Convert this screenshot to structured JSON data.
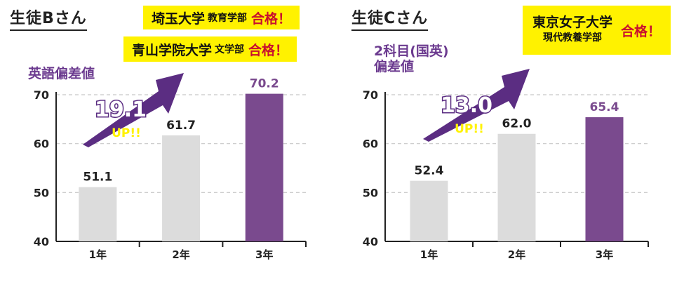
{
  "panels": [
    {
      "student": "生徒Bさん",
      "ylabel": "英語偏差値",
      "tags": [
        {
          "univ": "埼玉大学",
          "dept": "教育学部",
          "pass": "合格！"
        },
        {
          "univ": "青山学院大学",
          "dept": "文学部",
          "pass": "合格！"
        }
      ],
      "gain": {
        "number": "19.1",
        "up": "UP!!"
      }
    },
    {
      "student": "生徒Cさん",
      "ylabel": "2科目(国英)\n偏差値",
      "tags": [
        {
          "univ": "東京女子大学",
          "dept": "現代教養学部",
          "pass": "合格！"
        }
      ],
      "gain": {
        "number": "13.0",
        "up": "UP!!"
      }
    }
  ],
  "colors": {
    "bar_default": "#dcdcdc",
    "bar_highlight": "#7a4a8e",
    "accent": "#5b2d82",
    "tag_bg": "#fff200",
    "pass_red": "#c8102e"
  },
  "chart_data": [
    {
      "type": "bar",
      "categories": [
        "1年",
        "2年",
        "3年"
      ],
      "values": [
        51.1,
        61.7,
        70.2
      ],
      "value_labels": [
        "51.1",
        "61.7",
        "70.2"
      ],
      "highlight": [
        false,
        false,
        true
      ],
      "ylabel": "英語偏差値",
      "ylim": [
        40,
        70
      ],
      "yticks": [
        40,
        50,
        60,
        70
      ],
      "grid": true
    },
    {
      "type": "bar",
      "categories": [
        "1年",
        "2年",
        "3年"
      ],
      "values": [
        52.4,
        62.0,
        65.4
      ],
      "value_labels": [
        "52.4",
        "62.0",
        "65.4"
      ],
      "highlight": [
        false,
        false,
        true
      ],
      "ylabel": "2科目(国英)偏差値",
      "ylim": [
        40,
        70
      ],
      "yticks": [
        40,
        50,
        60,
        70
      ],
      "grid": true
    }
  ]
}
